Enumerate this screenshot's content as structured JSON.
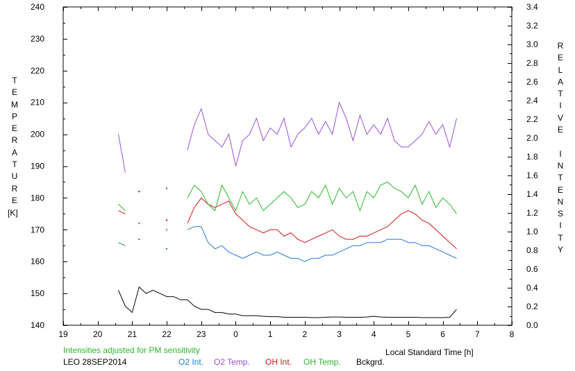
{
  "chart_data": {
    "type": "line",
    "note_text": "Intensities adjusted for PM sensitivity",
    "station_label": "LEO 28SEP2014",
    "xlabel": "Local Standard Time [h]",
    "ylabel_left_letters": [
      "T",
      "E",
      "M",
      "P",
      "E",
      "R",
      "A",
      "T",
      "U",
      "R",
      "E"
    ],
    "ylabel_left_unit": "[K]",
    "ylabel_right_letters": [
      "R",
      "E",
      "L",
      "A",
      "T",
      "I",
      "V",
      "E",
      " ",
      "I",
      "N",
      "T",
      "E",
      "N",
      "S",
      "I",
      "T",
      "Y"
    ],
    "x_ticks": [
      "19",
      "20",
      "21",
      "22",
      "23",
      "0",
      "1",
      "2",
      "3",
      "4",
      "5",
      "6",
      "7",
      "8"
    ],
    "xlim": [
      19,
      32
    ],
    "y_left_ticks": [
      "140",
      "150",
      "160",
      "170",
      "180",
      "190",
      "200",
      "210",
      "220",
      "230",
      "240"
    ],
    "ylim_left": [
      140,
      240
    ],
    "y_right_ticks": [
      "0.0",
      "0.2",
      "0.4",
      "0.6",
      "0.8",
      "1.0",
      "1.2",
      "1.4",
      "1.6",
      "1.8",
      "2.0",
      "2.2",
      "2.4",
      "2.6",
      "2.8",
      "3.0",
      "3.2",
      "3.4"
    ],
    "ylim_right": [
      0,
      3.4
    ],
    "grid": false,
    "series": [
      {
        "name": "O2 Int.",
        "color": "#1e78dc",
        "axis": "left",
        "x": [
          20.6,
          20.8,
          21.0,
          21.2,
          21.4,
          21.6,
          21.8,
          22.0,
          22.2,
          22.4,
          22.6,
          22.8,
          23.0,
          23.2,
          23.4,
          23.6,
          23.8,
          24.0,
          24.2,
          24.4,
          24.6,
          24.8,
          25.0,
          25.2,
          25.4,
          25.6,
          25.8,
          26.0,
          26.2,
          26.4,
          26.6,
          26.8,
          27.0,
          27.2,
          27.4,
          27.6,
          27.8,
          28.0,
          28.2,
          28.4,
          28.6,
          28.8,
          29.0,
          29.2,
          29.4,
          29.6,
          29.8,
          30.0,
          30.2,
          30.4
        ],
        "y": [
          166,
          165,
          null,
          167,
          null,
          null,
          null,
          164,
          null,
          null,
          170,
          171,
          171,
          166,
          164,
          165,
          163,
          162,
          161,
          162,
          163,
          162,
          162,
          163,
          162,
          161,
          161,
          160,
          161,
          161,
          162,
          162,
          163,
          164,
          165,
          165,
          166,
          166,
          166,
          167,
          167,
          167,
          166,
          166,
          165,
          165,
          164,
          163,
          162,
          161
        ]
      },
      {
        "name": "O2 Temp.",
        "color": "#9b4fd8",
        "axis": "left",
        "x": [
          20.6,
          20.8,
          21.0,
          21.2,
          21.4,
          21.6,
          21.8,
          22.0,
          22.2,
          22.4,
          22.6,
          22.8,
          23.0,
          23.2,
          23.4,
          23.6,
          23.8,
          24.0,
          24.2,
          24.4,
          24.6,
          24.8,
          25.0,
          25.2,
          25.4,
          25.6,
          25.8,
          26.0,
          26.2,
          26.4,
          26.6,
          26.8,
          27.0,
          27.2,
          27.4,
          27.6,
          27.8,
          28.0,
          28.2,
          28.4,
          28.6,
          28.8,
          29.0,
          29.2,
          29.4,
          29.6,
          29.8,
          30.0,
          30.2,
          30.4
        ],
        "y": [
          200,
          188,
          null,
          null,
          null,
          null,
          null,
          183,
          null,
          null,
          195,
          203,
          208,
          200,
          198,
          196,
          200,
          190,
          198,
          200,
          205,
          198,
          202,
          200,
          205,
          196,
          200,
          202,
          205,
          200,
          204,
          200,
          210,
          205,
          198,
          206,
          200,
          203,
          200,
          205,
          198,
          196,
          196,
          198,
          200,
          204,
          200,
          203,
          196,
          205
        ]
      },
      {
        "name": "OH Int.",
        "color": "#d41616",
        "axis": "left",
        "x": [
          20.6,
          20.8,
          21.0,
          21.2,
          21.4,
          21.6,
          21.8,
          22.0,
          22.2,
          22.4,
          22.6,
          22.8,
          23.0,
          23.2,
          23.4,
          23.6,
          23.8,
          24.0,
          24.2,
          24.4,
          24.6,
          24.8,
          25.0,
          25.2,
          25.4,
          25.6,
          25.8,
          26.0,
          26.2,
          26.4,
          26.6,
          26.8,
          27.0,
          27.2,
          27.4,
          27.6,
          27.8,
          28.0,
          28.2,
          28.4,
          28.6,
          28.8,
          29.0,
          29.2,
          29.4,
          29.6,
          29.8,
          30.0,
          30.2,
          30.4
        ],
        "y": [
          176,
          175,
          null,
          182,
          null,
          null,
          null,
          173,
          null,
          null,
          172,
          177,
          180,
          178,
          177,
          178,
          179,
          175,
          173,
          171,
          170,
          169,
          170,
          170,
          168,
          169,
          167,
          166,
          167,
          168,
          169,
          170,
          168,
          167,
          167,
          168,
          168,
          169,
          170,
          171,
          173,
          175,
          176,
          175,
          173,
          172,
          170,
          168,
          166,
          164
        ]
      },
      {
        "name": "OH Temp.",
        "color": "#2cb82c",
        "axis": "left",
        "x": [
          20.6,
          20.8,
          21.0,
          21.2,
          21.4,
          21.6,
          21.8,
          22.0,
          22.2,
          22.4,
          22.6,
          22.8,
          23.0,
          23.2,
          23.4,
          23.6,
          23.8,
          24.0,
          24.2,
          24.4,
          24.6,
          24.8,
          25.0,
          25.2,
          25.4,
          25.6,
          25.8,
          26.0,
          26.2,
          26.4,
          26.6,
          26.8,
          27.0,
          27.2,
          27.4,
          27.6,
          27.8,
          28.0,
          28.2,
          28.4,
          28.6,
          28.8,
          29.0,
          29.2,
          29.4,
          29.6,
          29.8,
          30.0,
          30.2,
          30.4
        ],
        "y": [
          178,
          176,
          null,
          172,
          null,
          null,
          null,
          170,
          null,
          null,
          180,
          184,
          182,
          178,
          176,
          184,
          180,
          176,
          182,
          178,
          180,
          176,
          178,
          180,
          182,
          180,
          177,
          178,
          182,
          180,
          184,
          178,
          183,
          180,
          182,
          176,
          182,
          180,
          184,
          185,
          183,
          182,
          180,
          184,
          178,
          182,
          177,
          180,
          178,
          175
        ]
      },
      {
        "name": "Bckgrd.",
        "color": "#000000",
        "axis": "left",
        "x": [
          20.6,
          20.8,
          21.0,
          21.2,
          21.4,
          21.6,
          21.8,
          22.0,
          22.2,
          22.4,
          22.6,
          22.8,
          23.0,
          23.2,
          23.4,
          23.6,
          23.8,
          24.0,
          24.2,
          24.4,
          24.6,
          24.8,
          25.0,
          25.2,
          25.4,
          25.6,
          25.8,
          26.0,
          26.2,
          26.4,
          26.6,
          26.8,
          27.0,
          27.2,
          27.4,
          27.6,
          27.8,
          28.0,
          28.2,
          28.4,
          28.6,
          28.8,
          29.0,
          29.2,
          29.4,
          29.6,
          29.8,
          30.0,
          30.2,
          30.4
        ],
        "y": [
          151,
          146,
          144,
          152,
          150,
          151,
          150,
          149,
          149,
          148,
          148,
          146,
          145,
          145,
          144,
          144,
          143.5,
          143.5,
          143,
          143,
          143,
          142.8,
          142.7,
          142.7,
          142.5,
          142.5,
          142.5,
          142.5,
          142.4,
          142.4,
          142.5,
          142.6,
          142.6,
          142.5,
          142.5,
          142.5,
          142.6,
          142.8,
          142.6,
          142.5,
          142.5,
          142.5,
          142.5,
          142.5,
          142.4,
          142.4,
          142.4,
          142.4,
          142.5,
          145
        ]
      }
    ]
  }
}
